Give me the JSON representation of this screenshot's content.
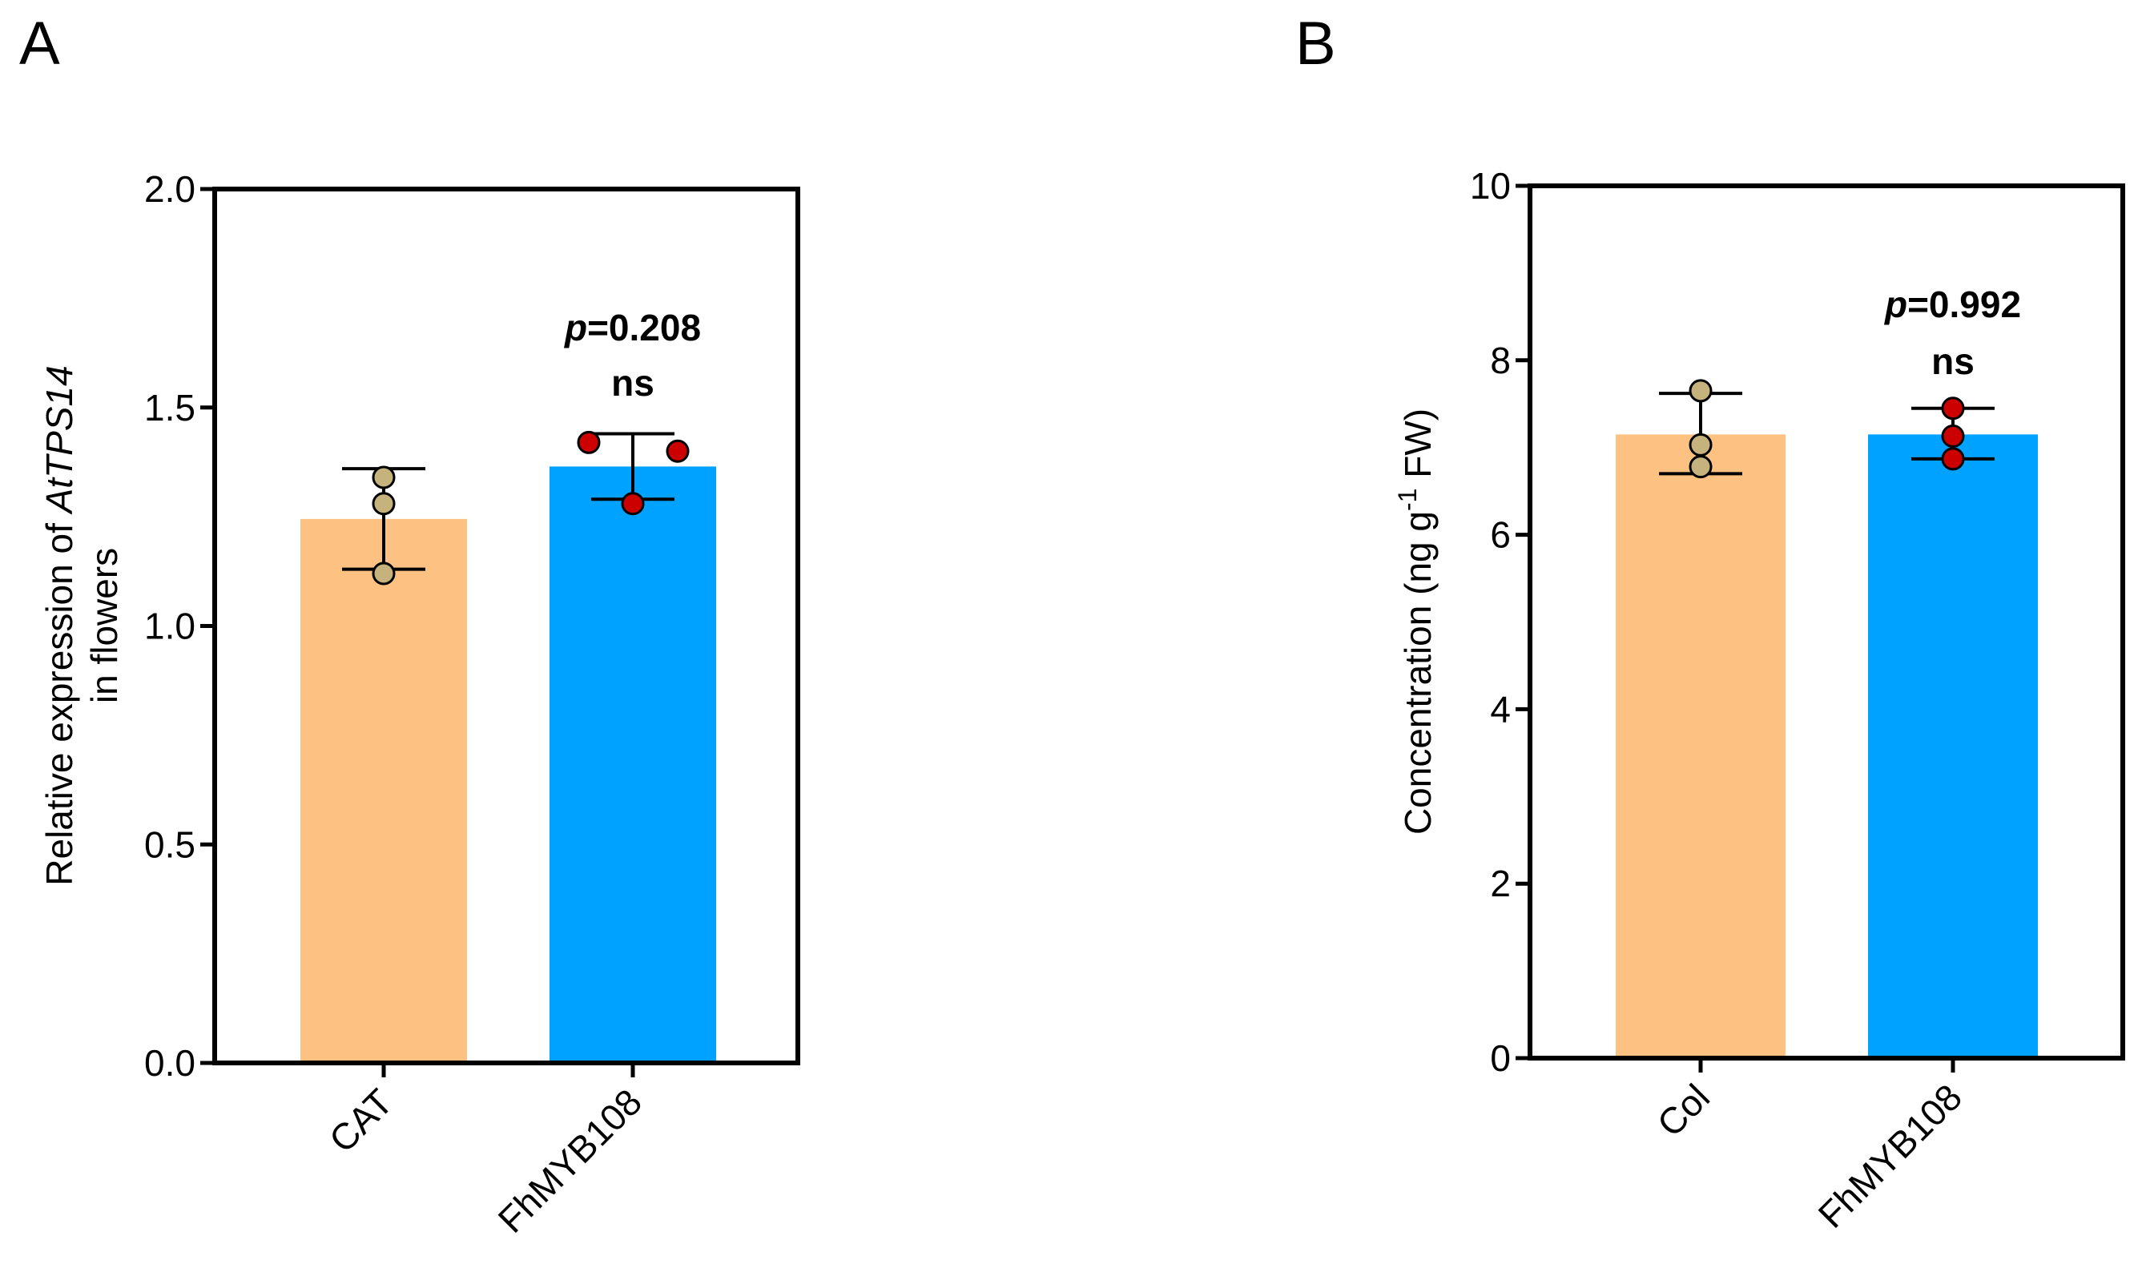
{
  "chart_data": [
    {
      "panel_label": "A",
      "type": "bar",
      "categories": [
        "CAT",
        "FhMYB108"
      ],
      "values": [
        1.245,
        1.365
      ],
      "error_low": [
        1.13,
        1.29
      ],
      "error_high": [
        1.36,
        1.44
      ],
      "points": [
        [
          1.12,
          1.28,
          1.34
        ],
        [
          1.28,
          1.42,
          1.4
        ]
      ],
      "bar_colors": [
        "#FDC281",
        "#00A2FF"
      ],
      "point_colors": [
        "#C6B27C",
        "#CC0000"
      ],
      "ylabel_line1_prefix": "Relative expression of ",
      "ylabel_line1_gene": "AtTPS14",
      "ylabel_line2": "in flowers",
      "ylim": [
        0,
        2.0
      ],
      "yticks": [
        0.0,
        0.5,
        1.0,
        1.5,
        2.0
      ],
      "ytick_labels": [
        "0.0",
        "0.5",
        "1.0",
        "1.5",
        "2.0"
      ],
      "annotation_p_letter": "p",
      "annotation_p_value": "=0.208",
      "annotation_ns": "ns"
    },
    {
      "panel_label": "B",
      "type": "bar",
      "categories": [
        "Col",
        "FhMYB108"
      ],
      "values": [
        7.15,
        7.15
      ],
      "error_low": [
        6.7,
        6.87
      ],
      "error_high": [
        7.62,
        7.45
      ],
      "points": [
        [
          6.78,
          7.03,
          7.65
        ],
        [
          6.87,
          7.13,
          7.45
        ]
      ],
      "bar_colors": [
        "#FDC281",
        "#00A2FF"
      ],
      "point_colors": [
        "#C6B27C",
        "#CC0000"
      ],
      "ylabel_main": "Concentration (ng g",
      "ylabel_sup": "-1",
      "ylabel_tail": " FW)",
      "ylim": [
        0,
        10
      ],
      "yticks": [
        0,
        2,
        4,
        6,
        8,
        10
      ],
      "ytick_labels": [
        "0",
        "2",
        "4",
        "6",
        "8",
        "10"
      ],
      "annotation_p_letter": "p",
      "annotation_p_value": "=0.992",
      "annotation_ns": "ns"
    }
  ]
}
